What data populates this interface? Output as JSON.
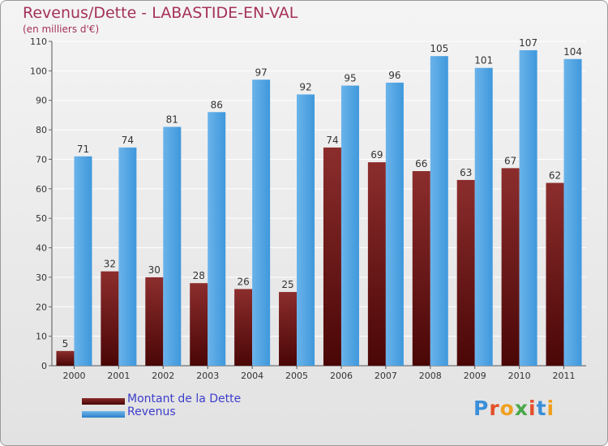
{
  "title": "Revenus/Dette - LABASTIDE-EN-VAL",
  "subtitle": "(en milliers d'€)",
  "logo": "Proxiti",
  "chart_data": {
    "type": "bar",
    "categories": [
      "2000",
      "2001",
      "2002",
      "2003",
      "2004",
      "2005",
      "2006",
      "2007",
      "2008",
      "2009",
      "2010",
      "2011"
    ],
    "series": [
      {
        "name": "Montant de la Dette",
        "color": "#7a1f22",
        "values": [
          5,
          32,
          30,
          28,
          26,
          25,
          74,
          69,
          66,
          63,
          67,
          62
        ]
      },
      {
        "name": "Revenus",
        "color": "#3f98dc",
        "values": [
          71,
          74,
          81,
          86,
          97,
          92,
          95,
          96,
          105,
          101,
          107,
          104
        ]
      }
    ],
    "ylim": [
      0,
      110
    ],
    "yticks": [
      0,
      10,
      20,
      30,
      40,
      50,
      60,
      70,
      80,
      90,
      100,
      110
    ],
    "grid": true,
    "legend": "bottom-left"
  }
}
